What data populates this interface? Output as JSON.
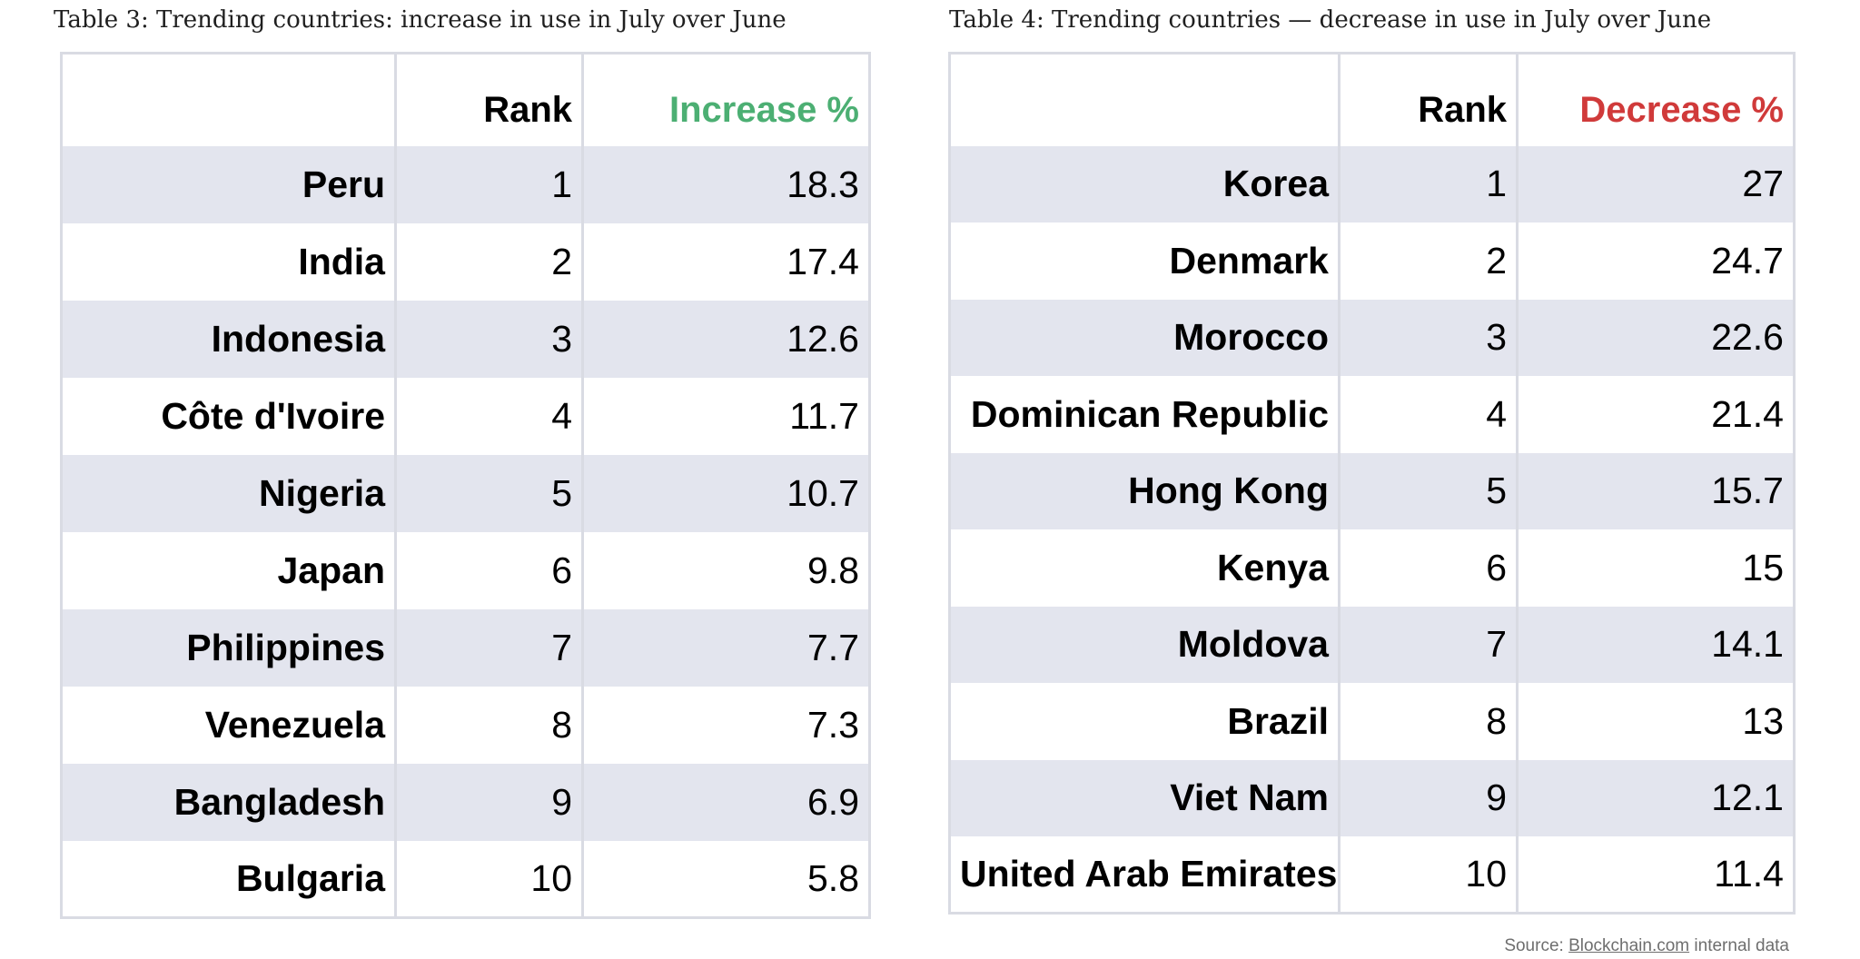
{
  "table3": {
    "caption": "Table 3: Trending countries: increase in use in July over June",
    "headers": {
      "country": "",
      "rank": "Rank",
      "metric": "Increase %"
    },
    "rows": [
      {
        "country": "Peru",
        "rank": "1",
        "value": "18.3"
      },
      {
        "country": "India",
        "rank": "2",
        "value": "17.4"
      },
      {
        "country": "Indonesia",
        "rank": "3",
        "value": "12.6"
      },
      {
        "country": "Côte d'Ivoire",
        "rank": "4",
        "value": "11.7"
      },
      {
        "country": "Nigeria",
        "rank": "5",
        "value": "10.7"
      },
      {
        "country": "Japan",
        "rank": "6",
        "value": "9.8"
      },
      {
        "country": "Philippines",
        "rank": "7",
        "value": "7.7"
      },
      {
        "country": "Venezuela",
        "rank": "8",
        "value": "7.3"
      },
      {
        "country": "Bangladesh",
        "rank": "9",
        "value": "6.9"
      },
      {
        "country": "Bulgaria",
        "rank": "10",
        "value": "5.8"
      }
    ],
    "metric_color": "#4caf73"
  },
  "table4": {
    "caption": "Table 4: Trending countries — decrease in use in July over June",
    "headers": {
      "country": "",
      "rank": "Rank",
      "metric": "Decrease %"
    },
    "rows": [
      {
        "country": "Korea",
        "rank": "1",
        "value": "27"
      },
      {
        "country": "Denmark",
        "rank": "2",
        "value": "24.7"
      },
      {
        "country": "Morocco",
        "rank": "3",
        "value": "22.6"
      },
      {
        "country": "Dominican Republic",
        "rank": "4",
        "value": "21.4"
      },
      {
        "country": "Hong Kong",
        "rank": "5",
        "value": "15.7"
      },
      {
        "country": "Kenya",
        "rank": "6",
        "value": "15"
      },
      {
        "country": "Moldova",
        "rank": "7",
        "value": "14.1"
      },
      {
        "country": "Brazil",
        "rank": "8",
        "value": "13"
      },
      {
        "country": "Viet Nam",
        "rank": "9",
        "value": "12.1"
      },
      {
        "country": "United Arab Emirates",
        "rank": "10",
        "value": "11.4"
      }
    ],
    "metric_color": "#d03a3a"
  },
  "source": {
    "prefix": "Source: ",
    "link_text": "Blockchain.com",
    "suffix": " internal data"
  },
  "colors": {
    "stripe": "#e3e5ee",
    "border": "#d9dbe3"
  }
}
